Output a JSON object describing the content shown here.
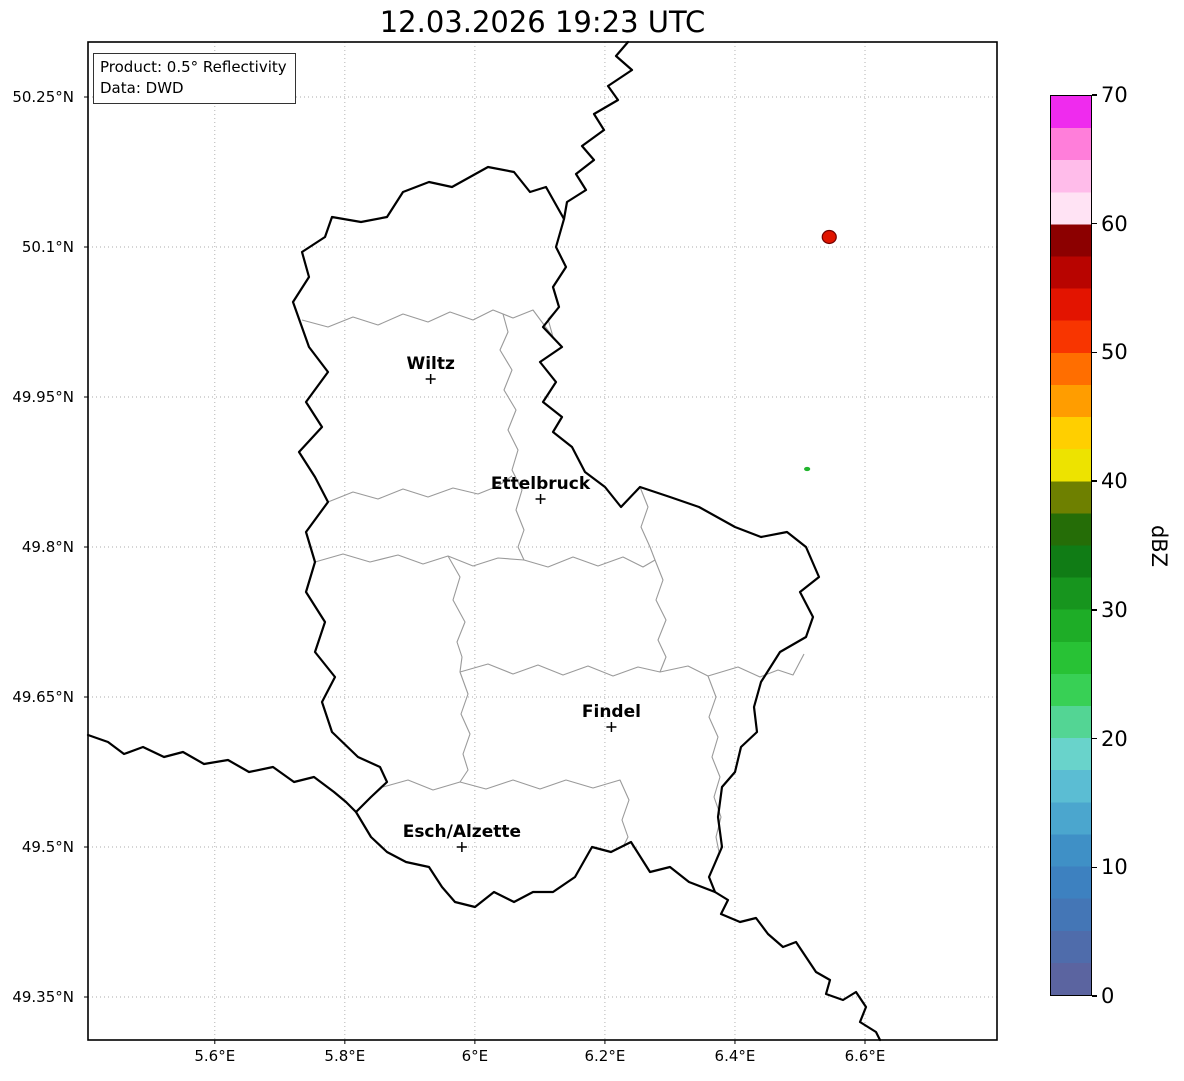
{
  "title": "12.03.2026 19:23 UTC",
  "info_box": {
    "product": "Product: 0.5° Reflectivity",
    "source": "Data: DWD"
  },
  "axes": {
    "lon_range": [
      5.405,
      6.803
    ],
    "lat_range": [
      49.307,
      50.305
    ],
    "lon_ticks": [
      {
        "value": 5.6,
        "label": "5.6°E"
      },
      {
        "value": 5.8,
        "label": "5.8°E"
      },
      {
        "value": 6.0,
        "label": "6°E"
      },
      {
        "value": 6.2,
        "label": "6.2°E"
      },
      {
        "value": 6.4,
        "label": "6.4°E"
      },
      {
        "value": 6.6,
        "label": "6.6°E"
      }
    ],
    "lat_ticks": [
      {
        "value": 50.25,
        "label": "50.25°N"
      },
      {
        "value": 50.1,
        "label": "50.1°N"
      },
      {
        "value": 49.95,
        "label": "49.95°N"
      },
      {
        "value": 49.8,
        "label": "49.8°N"
      },
      {
        "value": 49.65,
        "label": "49.65°N"
      },
      {
        "value": 49.5,
        "label": "49.5°N"
      },
      {
        "value": 49.35,
        "label": "49.35°N"
      }
    ]
  },
  "cities": [
    {
      "name": "Wiltz",
      "lon": 5.932,
      "lat": 49.968
    },
    {
      "name": "Ettelbruck",
      "lon": 6.101,
      "lat": 49.848
    },
    {
      "name": "Findel",
      "lon": 6.21,
      "lat": 49.62
    },
    {
      "name": "Esch/Alzette",
      "lon": 5.98,
      "lat": 49.5
    }
  ],
  "colorbar": {
    "label": "dBZ",
    "min": 0,
    "max": 70,
    "band_width_dbz": 2.5,
    "ticks": [
      0,
      10,
      20,
      30,
      40,
      50,
      60,
      70
    ],
    "colors": [
      "#5b64a0",
      "#4f6cab",
      "#4476b6",
      "#3d81c0",
      "#3f90c6",
      "#4ba6ce",
      "#5bbdd3",
      "#69d3cb",
      "#53d594",
      "#38d055",
      "#28c235",
      "#1ead27",
      "#17951e",
      "#107c15",
      "#256d07",
      "#6e8000",
      "#ede300",
      "#ffcf00",
      "#ff9d00",
      "#ff6e00",
      "#f83500",
      "#e31400",
      "#b80400",
      "#8c0000",
      "#ffe3f4",
      "#ffbcea",
      "#ff7eda",
      "#ef2bee"
    ]
  },
  "chart_data": {
    "type": "map-radar",
    "title": "12.03.2026 19:23 UTC",
    "region": "Luxembourg",
    "echoes": [
      {
        "lon": 6.545,
        "lat": 50.11,
        "dbz": 52,
        "color": "#e01400",
        "edge": "#700000",
        "rx": 7,
        "ry": 6.5
      },
      {
        "lon": 6.511,
        "lat": 49.878,
        "dbz": 27,
        "color": "#22b52e",
        "edge": "#22b52e",
        "rx": 2.5,
        "ry": 1.5
      }
    ]
  }
}
